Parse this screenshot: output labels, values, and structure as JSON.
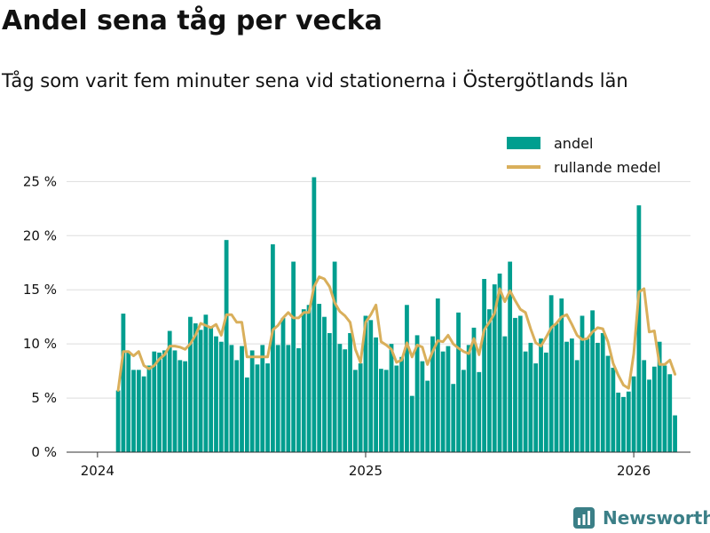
{
  "title": "Andel sena tåg per vecka",
  "subtitle": "Tåg som varit fem minuter sena vid stationerna i Östergötlands län",
  "brand": "Newsworthy",
  "colors": {
    "bars": "#009e8f",
    "line": "#d9af5b",
    "text": "#111111",
    "grid": "#dddddd",
    "brand": "#3b7f87"
  },
  "chart_data": {
    "type": "bar",
    "title": "Andel sena tåg per vecka",
    "xlabel": "",
    "ylabel": "",
    "ylim": [
      0,
      27
    ],
    "yticks": [
      0,
      5,
      10,
      15,
      20,
      25
    ],
    "ytick_labels": [
      "0 %",
      "5 %",
      "10 %",
      "15 %",
      "20 %",
      "25 %"
    ],
    "x_range": [
      -6,
      115
    ],
    "xticks": [
      {
        "pos": 0,
        "label": "2024"
      },
      {
        "pos": 52,
        "label": "2025"
      },
      {
        "pos": 104,
        "label": "2026"
      }
    ],
    "legend": {
      "position": "top-right",
      "items": [
        "andel",
        "rullande medel"
      ]
    },
    "series": [
      {
        "name": "andel",
        "kind": "bar",
        "start_index": 4,
        "values": [
          5.7,
          12.8,
          9.3,
          7.6,
          7.6,
          7.0,
          8.0,
          9.3,
          9.2,
          9.4,
          11.2,
          9.4,
          8.5,
          8.4,
          12.5,
          11.9,
          11.3,
          12.7,
          11.5,
          10.7,
          10.2,
          19.6,
          9.9,
          8.5,
          9.8,
          6.9,
          9.4,
          8.1,
          9.9,
          8.2,
          19.2,
          9.9,
          12.4,
          9.9,
          17.6,
          9.6,
          13.2,
          13.6,
          25.4,
          13.7,
          12.5,
          11.0,
          17.6,
          10.0,
          9.5,
          11.0,
          7.6,
          8.2,
          12.6,
          12.2,
          10.6,
          7.7,
          7.6,
          10.0,
          8.0,
          8.8,
          13.6,
          5.2,
          10.8,
          8.4,
          6.6,
          10.7,
          14.2,
          9.3,
          9.8,
          6.3,
          12.9,
          7.6,
          9.9,
          11.5,
          7.4,
          16.0,
          13.2,
          15.5,
          16.5,
          10.7,
          17.6,
          12.4,
          12.6,
          9.3,
          10.1,
          8.2,
          10.5,
          9.2,
          14.5,
          11.9,
          14.2,
          10.2,
          10.5,
          8.5,
          12.6,
          10.5,
          13.1,
          10.1,
          11.0,
          8.9,
          7.8,
          5.5,
          5.1,
          5.6,
          7.0,
          22.8,
          8.5,
          6.7,
          7.9,
          10.2,
          8.0,
          7.2,
          3.4
        ]
      },
      {
        "name": "rullande medel",
        "kind": "line",
        "start_index": 4,
        "values": [
          5.7,
          9.3,
          9.3,
          8.9,
          9.3,
          8.0,
          7.7,
          8.0,
          8.6,
          9.0,
          9.8,
          9.8,
          9.7,
          9.5,
          10.0,
          10.8,
          11.9,
          11.7,
          11.5,
          11.8,
          10.8,
          12.7,
          12.7,
          12.0,
          12.0,
          8.8,
          8.8,
          8.8,
          8.8,
          8.8,
          11.3,
          11.7,
          12.4,
          12.9,
          12.4,
          12.4,
          12.9,
          12.9,
          15.3,
          16.2,
          16.0,
          15.3,
          13.8,
          13.0,
          12.6,
          12.0,
          9.5,
          8.3,
          12.0,
          12.7,
          13.6,
          10.2,
          9.9,
          9.5,
          8.3,
          8.5,
          10.1,
          8.8,
          9.9,
          9.7,
          8.1,
          9.3,
          10.3,
          10.2,
          10.8,
          10.0,
          9.6,
          9.3,
          9.1,
          10.5,
          9.0,
          11.3,
          12.0,
          12.8,
          15.1,
          13.9,
          14.9,
          14.0,
          13.2,
          12.9,
          11.4,
          10.1,
          9.8,
          10.6,
          11.5,
          11.9,
          12.5,
          12.7,
          11.8,
          10.8,
          10.4,
          10.5,
          11.1,
          11.5,
          11.4,
          10.2,
          8.2,
          7.1,
          6.2,
          5.9,
          9.1,
          14.8,
          15.1,
          11.1,
          11.2,
          8.1,
          8.1,
          8.5,
          7.2
        ]
      }
    ]
  }
}
